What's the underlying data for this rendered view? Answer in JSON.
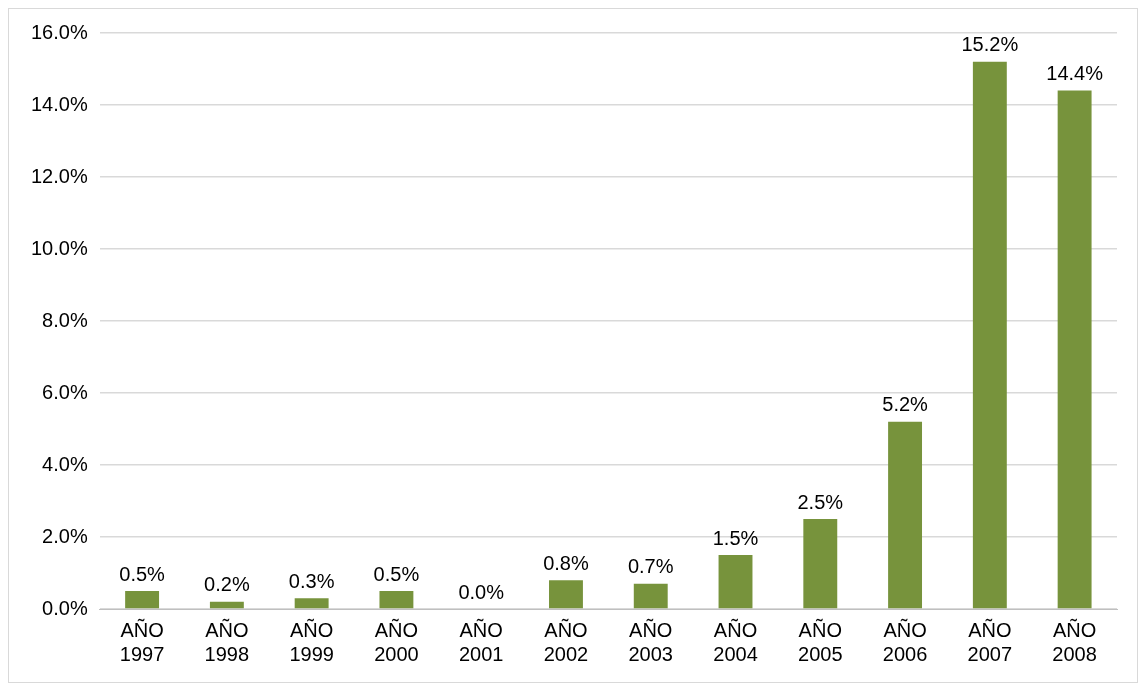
{
  "chart_data": {
    "type": "bar",
    "categories": [
      "AÑO 1997",
      "AÑO 1998",
      "AÑO 1999",
      "AÑO 2000",
      "AÑO 2001",
      "AÑO 2002",
      "AÑO 2003",
      "AÑO 2004",
      "AÑO 2005",
      "AÑO 2006",
      "AÑO 2007",
      "AÑO 2008"
    ],
    "values": [
      0.5,
      0.2,
      0.3,
      0.5,
      0.0,
      0.8,
      0.7,
      1.5,
      2.5,
      5.2,
      15.2,
      14.4
    ],
    "value_labels": [
      "0.5%",
      "0.2%",
      "0.3%",
      "0.5%",
      "0.0%",
      "0.8%",
      "0.7%",
      "1.5%",
      "2.5%",
      "5.2%",
      "15.2%",
      "14.4%"
    ],
    "color": "#77933c",
    "ylim": [
      0,
      16
    ],
    "yticks": [
      {
        "value": 0,
        "label": "0.0%"
      },
      {
        "value": 2,
        "label": "2.0%"
      },
      {
        "value": 4,
        "label": "4.0%"
      },
      {
        "value": 6,
        "label": "6.0%"
      },
      {
        "value": 8,
        "label": "8.0%"
      },
      {
        "value": 10,
        "label": "10.0%"
      },
      {
        "value": 12,
        "label": "12.0%"
      },
      {
        "value": 14,
        "label": "14.0%"
      },
      {
        "value": 16,
        "label": "16.0%"
      }
    ],
    "grid": "y",
    "legend": false
  }
}
